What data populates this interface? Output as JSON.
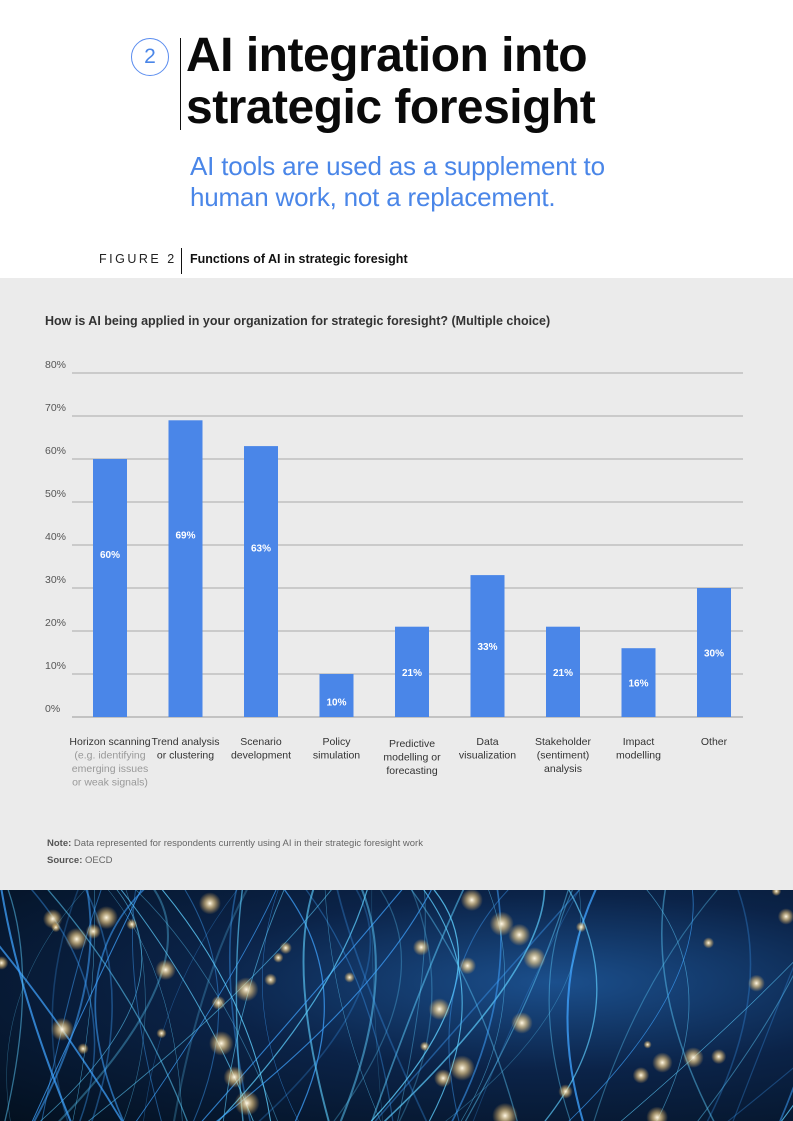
{
  "header": {
    "section_number": "2",
    "title_line1": "AI integration into",
    "title_line2": "strategic foresight",
    "subtitle_line1": "AI tools are used as a supplement to",
    "subtitle_line2": "human work, not a replacement."
  },
  "figure": {
    "label": "FIGURE 2",
    "title": "Functions of AI in strategic foresight"
  },
  "question": "How is AI being applied in your organization for strategic foresight? (Multiple choice)",
  "colors": {
    "bar": "#4a86e8",
    "accent": "#4a86e8",
    "panel": "#ebebeb"
  },
  "chart_data": {
    "type": "bar",
    "title": "How is AI being applied in your organization for strategic foresight? (Multiple choice)",
    "xlabel": "",
    "ylabel": "",
    "ylim": [
      0,
      80
    ],
    "yticks": [
      "0%",
      "10%",
      "20%",
      "30%",
      "40%",
      "50%",
      "60%",
      "70%",
      "80%"
    ],
    "grid": true,
    "categories": [
      [
        "Horizon scanning",
        "(e.g. identifying",
        "emerging issues",
        "or weak signals)"
      ],
      [
        "Trend analysis",
        "or clustering"
      ],
      [
        "Scenario",
        "development"
      ],
      [
        "Policy",
        "simulation"
      ],
      [
        "Predictive",
        "modelling or",
        "forecasting"
      ],
      [
        "Data",
        "visualization"
      ],
      [
        "Stakeholder",
        "(sentiment)",
        "analysis"
      ],
      [
        "Impact",
        "modelling"
      ],
      [
        "Other"
      ]
    ],
    "values": [
      60,
      69,
      63,
      10,
      21,
      33,
      21,
      16,
      30
    ],
    "value_labels": [
      "60%",
      "69%",
      "63%",
      "10%",
      "21%",
      "33%",
      "21%",
      "16%",
      "30%"
    ]
  },
  "note": {
    "note_label": "Note:",
    "note_text": "Data represented for respondents currently using AI in their strategic foresight work",
    "source_label": "Source:",
    "source_text": "OECD"
  }
}
